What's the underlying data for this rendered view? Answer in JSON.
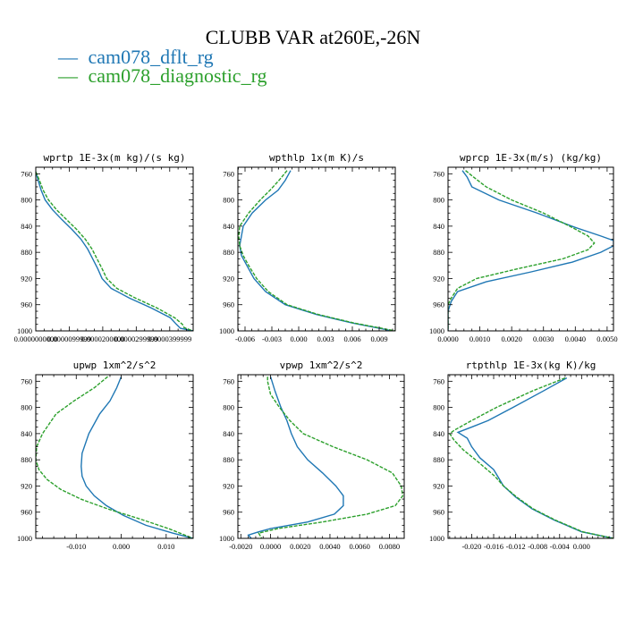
{
  "figure": {
    "title": "CLUBB VAR at260E,-26N",
    "series_colors": [
      "#1f77b4",
      "#2ca02c"
    ]
  },
  "legend": [
    {
      "name": "cam078_dflt_rg",
      "color": "#1f77b4",
      "marker": "—"
    },
    {
      "name": "cam078_diagnostic_rg",
      "color": "#2ca02c",
      "marker": "—"
    }
  ],
  "chart_data": [
    {
      "type": "line",
      "title": "wprtp  1E-3x(m kg)/(s kg)",
      "ylim": [
        1000,
        750
      ],
      "yticks": [
        760,
        800,
        840,
        880,
        920,
        960,
        1000
      ],
      "xlim": [
        0.0,
        4.7e-05
      ],
      "xticks": [
        0.0,
        1e-05,
        2e-05,
        3e-05,
        4e-05
      ],
      "xtick_labels": [
        "0.0000000000",
        "0.0000099999",
        "0.0000200000",
        "0.0000299999",
        "0.0000399999"
      ],
      "series": [
        {
          "style": "solid",
          "points": [
            [
              0.0,
              757
            ],
            [
              7e-07,
              770
            ],
            [
              1.6e-06,
              785
            ],
            [
              2.8e-06,
              800
            ],
            [
              5e-06,
              815
            ],
            [
              7.8e-06,
              830
            ],
            [
              1.08e-05,
              845
            ],
            [
              1.35e-05,
              860
            ],
            [
              1.55e-05,
              875
            ],
            [
              1.7e-05,
              890
            ],
            [
              1.85e-05,
              905
            ],
            [
              1.98e-05,
              920
            ],
            [
              2.25e-05,
              935
            ],
            [
              2.8e-05,
              950
            ],
            [
              3.45e-05,
              965
            ],
            [
              4.02e-05,
              980
            ],
            [
              4.2e-05,
              990
            ],
            [
              4.32e-05,
              996
            ],
            [
              4.7e-05,
              1000
            ]
          ]
        },
        {
          "style": "dashed",
          "points": [
            [
              0.0,
              757
            ],
            [
              1.1e-06,
              770
            ],
            [
              2.2e-06,
              785
            ],
            [
              3.8e-06,
              800
            ],
            [
              6.2e-06,
              815
            ],
            [
              9.2e-06,
              830
            ],
            [
              1.22e-05,
              845
            ],
            [
              1.48e-05,
              860
            ],
            [
              1.68e-05,
              875
            ],
            [
              1.83e-05,
              890
            ],
            [
              1.98e-05,
              905
            ],
            [
              2.12e-05,
              920
            ],
            [
              2.42e-05,
              935
            ],
            [
              2.98e-05,
              950
            ],
            [
              3.62e-05,
              965
            ],
            [
              4.15e-05,
              980
            ],
            [
              4.38e-05,
              990
            ],
            [
              4.43e-05,
              995
            ],
            [
              4.7e-05,
              1000
            ]
          ]
        }
      ]
    },
    {
      "type": "line",
      "title": "wpthlp  1x(m K)/s",
      "ylim": [
        1000,
        750
      ],
      "yticks": [
        760,
        800,
        840,
        880,
        920,
        960,
        1000
      ],
      "xlim": [
        -0.0068,
        0.0108
      ],
      "xticks": [
        -0.006,
        -0.003,
        0.0,
        0.003,
        0.006,
        0.009
      ],
      "xtick_labels": [
        "-0.006",
        "-0.003",
        "0.000",
        "0.003",
        "0.006",
        "0.009"
      ],
      "series": [
        {
          "style": "solid",
          "points": [
            [
              -0.0009,
              755
            ],
            [
              -0.0015,
              770
            ],
            [
              -0.0023,
              785
            ],
            [
              -0.0037,
              800
            ],
            [
              -0.0052,
              820
            ],
            [
              -0.0062,
              840
            ],
            [
              -0.0064,
              855
            ],
            [
              -0.0066,
              870
            ],
            [
              -0.0064,
              885
            ],
            [
              -0.0058,
              900
            ],
            [
              -0.005,
              920
            ],
            [
              -0.0037,
              940
            ],
            [
              -0.0015,
              960
            ],
            [
              0.002,
              975
            ],
            [
              0.006,
              988
            ],
            [
              0.0105,
              1000
            ]
          ]
        },
        {
          "style": "dashed",
          "points": [
            [
              -0.0013,
              755
            ],
            [
              -0.0022,
              770
            ],
            [
              -0.0032,
              785
            ],
            [
              -0.0043,
              800
            ],
            [
              -0.0056,
              820
            ],
            [
              -0.0066,
              840
            ],
            [
              -0.0067,
              855
            ],
            [
              -0.0066,
              870
            ],
            [
              -0.0062,
              885
            ],
            [
              -0.0056,
              900
            ],
            [
              -0.0047,
              920
            ],
            [
              -0.0034,
              940
            ],
            [
              -0.0013,
              960
            ],
            [
              0.0022,
              975
            ],
            [
              0.0062,
              988
            ],
            [
              0.0108,
              1000
            ]
          ]
        }
      ]
    },
    {
      "type": "line",
      "title": "wprcp  1E-3x(m/s) (kg/kg)",
      "ylim": [
        1000,
        750
      ],
      "yticks": [
        760,
        800,
        840,
        880,
        920,
        960,
        1000
      ],
      "xlim": [
        0.0,
        0.0052
      ],
      "xticks": [
        0.0,
        0.001,
        0.002,
        0.003,
        0.004,
        0.005
      ],
      "xtick_labels": [
        "0.0000",
        "0.0010",
        "0.0020",
        "0.0030",
        "0.0040",
        "0.0050"
      ],
      "series": [
        {
          "style": "solid",
          "points": [
            [
              0.00045,
              755
            ],
            [
              0.0006,
              765
            ],
            [
              0.00075,
              780
            ],
            [
              0.0016,
              800
            ],
            [
              0.0028,
              820
            ],
            [
              0.004,
              842
            ],
            [
              0.0048,
              855
            ],
            [
              0.0052,
              862
            ],
            [
              0.0052,
              870
            ],
            [
              0.0048,
              880
            ],
            [
              0.0039,
              895
            ],
            [
              0.0026,
              910
            ],
            [
              0.0012,
              925
            ],
            [
              0.0003,
              940
            ],
            [
              0.0001,
              955
            ],
            [
              0.0,
              970
            ],
            [
              0.0,
              1000
            ]
          ]
        },
        {
          "style": "dashed",
          "points": [
            [
              0.00055,
              755
            ],
            [
              0.0008,
              765
            ],
            [
              0.0012,
              780
            ],
            [
              0.002,
              800
            ],
            [
              0.003,
              820
            ],
            [
              0.0039,
              842
            ],
            [
              0.0044,
              855
            ],
            [
              0.0046,
              866
            ],
            [
              0.0044,
              876
            ],
            [
              0.0036,
              890
            ],
            [
              0.0022,
              905
            ],
            [
              0.0009,
              920
            ],
            [
              0.0003,
              935
            ],
            [
              0.0001,
              950
            ],
            [
              0.0,
              960
            ],
            [
              0.0,
              1000
            ]
          ]
        }
      ]
    },
    {
      "type": "line",
      "title": "upwp  1xm^2/s^2",
      "ylim": [
        1000,
        750
      ],
      "yticks": [
        760,
        800,
        840,
        880,
        920,
        960,
        1000
      ],
      "xlim": [
        -0.019,
        0.016
      ],
      "xticks": [
        -0.01,
        0.0,
        0.01
      ],
      "xtick_labels": [
        "-0.010",
        "0.000",
        "0.010"
      ],
      "series": [
        {
          "style": "solid",
          "points": [
            [
              0.0,
              753
            ],
            [
              -0.001,
              770
            ],
            [
              -0.0025,
              790
            ],
            [
              -0.0048,
              810
            ],
            [
              -0.0072,
              840
            ],
            [
              -0.0087,
              870
            ],
            [
              -0.0089,
              890
            ],
            [
              -0.0087,
              905
            ],
            [
              -0.0078,
              920
            ],
            [
              -0.006,
              935
            ],
            [
              -0.0033,
              950
            ],
            [
              0.0005,
              965
            ],
            [
              0.0055,
              980
            ],
            [
              0.0115,
              992
            ],
            [
              0.016,
              1000
            ]
          ]
        },
        {
          "style": "dashed",
          "points": [
            [
              -0.003,
              753
            ],
            [
              -0.006,
              770
            ],
            [
              -0.0105,
              790
            ],
            [
              -0.0145,
              810
            ],
            [
              -0.0175,
              840
            ],
            [
              -0.0188,
              860
            ],
            [
              -0.019,
              880
            ],
            [
              -0.0183,
              895
            ],
            [
              -0.0165,
              910
            ],
            [
              -0.0135,
              925
            ],
            [
              -0.009,
              940
            ],
            [
              -0.003,
              955
            ],
            [
              0.004,
              970
            ],
            [
              0.0105,
              985
            ],
            [
              0.016,
              1000
            ]
          ]
        }
      ]
    },
    {
      "type": "line",
      "title": "vpwp  1xm^2/s^2",
      "ylim": [
        1000,
        750
      ],
      "yticks": [
        760,
        800,
        840,
        880,
        920,
        960,
        1000
      ],
      "xlim": [
        -0.0022,
        0.009
      ],
      "xticks": [
        -0.002,
        0.0,
        0.002,
        0.004,
        0.006,
        0.008
      ],
      "xtick_labels": [
        "-0.0020",
        "0.0000",
        "0.0020",
        "0.0040",
        "0.0060",
        "0.0080"
      ],
      "series": [
        {
          "style": "solid",
          "points": [
            [
              0.0,
              753
            ],
            [
              0.0003,
              775
            ],
            [
              0.0007,
              800
            ],
            [
              0.0011,
              820
            ],
            [
              0.0014,
              840
            ],
            [
              0.0018,
              860
            ],
            [
              0.0025,
              880
            ],
            [
              0.0035,
              900
            ],
            [
              0.0044,
              920
            ],
            [
              0.0049,
              935
            ],
            [
              0.0049,
              950
            ],
            [
              0.0043,
              963
            ],
            [
              0.0025,
              975
            ],
            [
              0.0,
              985
            ],
            [
              -0.0008,
              990
            ],
            [
              -0.0015,
              995
            ],
            [
              -0.0013,
              1000
            ]
          ]
        },
        {
          "style": "dashed",
          "points": [
            [
              -0.0002,
              753
            ],
            [
              -0.0002,
              760
            ],
            [
              0.0,
              780
            ],
            [
              0.0006,
              800
            ],
            [
              0.0013,
              820
            ],
            [
              0.0022,
              840
            ],
            [
              0.0042,
              860
            ],
            [
              0.0065,
              880
            ],
            [
              0.0082,
              900
            ],
            [
              0.0088,
              920
            ],
            [
              0.0089,
              935
            ],
            [
              0.0084,
              950
            ],
            [
              0.0065,
              963
            ],
            [
              0.0035,
              975
            ],
            [
              0.0005,
              985
            ],
            [
              -0.0008,
              992
            ],
            [
              -0.0006,
              1000
            ]
          ]
        }
      ]
    },
    {
      "type": "line",
      "title": "rtpthlp  1E-3x(kg K)/kg",
      "ylim": [
        1000,
        750
      ],
      "yticks": [
        760,
        800,
        840,
        880,
        920,
        960,
        1000
      ],
      "xlim": [
        -0.0243,
        0.0058
      ],
      "xticks": [
        -0.02,
        -0.016,
        -0.012,
        -0.008,
        -0.004,
        0.0
      ],
      "xtick_labels": [
        "-0.020",
        "-0.016",
        "-0.012",
        "-0.008",
        "-0.004",
        "0.000"
      ],
      "series": [
        {
          "style": "solid",
          "points": [
            [
              -0.0027,
              755
            ],
            [
              -0.007,
              775
            ],
            [
              -0.0125,
              800
            ],
            [
              -0.017,
              820
            ],
            [
              -0.02,
              830
            ],
            [
              -0.0225,
              838
            ],
            [
              -0.0208,
              847
            ],
            [
              -0.02,
              860
            ],
            [
              -0.0185,
              877
            ],
            [
              -0.016,
              895
            ],
            [
              -0.0142,
              920
            ],
            [
              -0.012,
              937
            ],
            [
              -0.009,
              955
            ],
            [
              -0.005,
              972
            ],
            [
              0.0,
              990
            ],
            [
              0.0058,
              1000
            ]
          ]
        },
        {
          "style": "dashed",
          "points": [
            [
              -0.003,
              755
            ],
            [
              -0.009,
              775
            ],
            [
              -0.0155,
              800
            ],
            [
              -0.02,
              820
            ],
            [
              -0.0232,
              835
            ],
            [
              -0.024,
              840
            ],
            [
              -0.0232,
              850
            ],
            [
              -0.0215,
              865
            ],
            [
              -0.019,
              882
            ],
            [
              -0.0158,
              905
            ],
            [
              -0.0142,
              920
            ],
            [
              -0.0118,
              937
            ],
            [
              -0.0088,
              955
            ],
            [
              -0.0048,
              972
            ],
            [
              0.0002,
              990
            ],
            [
              0.0058,
              1000
            ]
          ]
        }
      ]
    }
  ]
}
